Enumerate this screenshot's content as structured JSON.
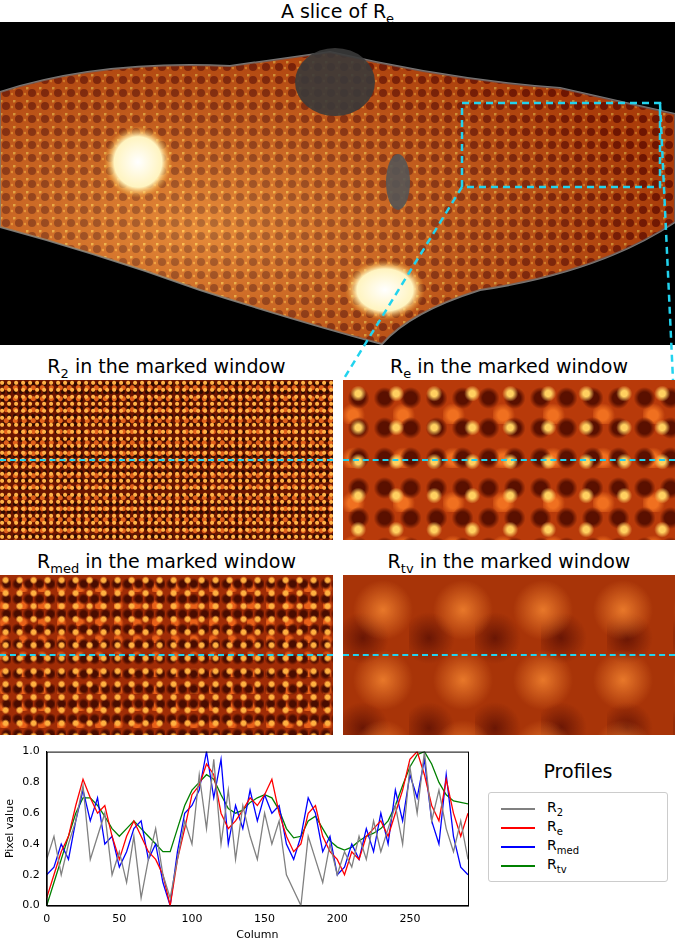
{
  "figure": {
    "title": "A slice of Re",
    "windows": [
      "R2 in the marked window",
      "Re in the marked window",
      "Rmed in the marked window",
      "Rtv in the marked window"
    ]
  },
  "chart_data": {
    "type": "line",
    "x_label": "Column",
    "y_label": "Pixel value",
    "legend": "right",
    "legend_title": "Profiles",
    "grid": false,
    "xlim": [
      0,
      290
    ],
    "xticks": [
      0,
      50,
      100,
      150,
      200,
      250
    ],
    "ylim": [
      0,
      1
    ],
    "yticks": [
      {
        "value": 0,
        "label": "0.0"
      },
      {
        "value": 0.2,
        "label": "0.2"
      },
      {
        "value": 0.4,
        "label": "0.4"
      },
      {
        "value": 0.6,
        "label": "0.6"
      },
      {
        "value": 0.8,
        "label": "0.8"
      },
      {
        "value": 1,
        "label": "1.0"
      }
    ],
    "x": [
      0,
      5,
      10,
      15,
      20,
      25,
      30,
      35,
      40,
      45,
      50,
      55,
      60,
      65,
      70,
      75,
      80,
      85,
      90,
      95,
      100,
      105,
      110,
      115,
      120,
      125,
      130,
      135,
      140,
      145,
      150,
      155,
      160,
      165,
      170,
      175,
      180,
      185,
      190,
      195,
      200,
      205,
      210,
      215,
      220,
      225,
      230,
      235,
      240,
      245,
      250,
      255,
      260,
      265,
      270,
      275,
      280,
      285,
      290
    ],
    "series": [
      {
        "name": "R2",
        "color": "#808080",
        "values": [
          0.3,
          0.45,
          0.2,
          0.4,
          0.55,
          0.78,
          0.3,
          0.45,
          0.6,
          0.2,
          0.35,
          0.15,
          0.45,
          0.05,
          0.3,
          0.5,
          0.2,
          0.05,
          0.3,
          0.55,
          0.4,
          0.85,
          0.5,
          0.95,
          0.4,
          0.75,
          0.3,
          0.65,
          0.45,
          0.3,
          0.6,
          0.4,
          0.55,
          0.2,
          0.1,
          0.0,
          0.45,
          0.3,
          0.15,
          0.4,
          0.2,
          0.35,
          0.25,
          0.45,
          0.3,
          0.55,
          0.35,
          0.5,
          0.65,
          0.4,
          0.9,
          0.6,
          1.0,
          0.55,
          0.75,
          0.5,
          0.35,
          0.55,
          0.3
        ]
      },
      {
        "name": "Re",
        "color": "#ff0000",
        "values": [
          0.05,
          0.2,
          0.35,
          0.45,
          0.65,
          0.82,
          0.7,
          0.6,
          0.65,
          0.45,
          0.3,
          0.45,
          0.55,
          0.45,
          0.35,
          0.3,
          0.2,
          0.0,
          0.3,
          0.5,
          0.72,
          0.78,
          0.92,
          0.85,
          0.6,
          0.5,
          0.55,
          0.62,
          0.7,
          0.65,
          0.72,
          0.82,
          0.6,
          0.45,
          0.35,
          0.4,
          0.6,
          0.65,
          0.45,
          0.35,
          0.3,
          0.2,
          0.35,
          0.3,
          0.45,
          0.5,
          0.55,
          0.45,
          0.6,
          0.75,
          0.95,
          1.0,
          0.85,
          0.65,
          0.55,
          0.82,
          0.6,
          0.45,
          0.6
        ]
      },
      {
        "name": "Rmed",
        "color": "#0000ff",
        "values": [
          0.2,
          0.25,
          0.4,
          0.3,
          0.55,
          0.75,
          0.55,
          0.7,
          0.4,
          0.45,
          0.25,
          0.35,
          0.5,
          0.55,
          0.3,
          0.4,
          0.15,
          0.0,
          0.35,
          0.6,
          0.65,
          0.75,
          1.0,
          0.7,
          0.95,
          0.4,
          0.65,
          0.5,
          0.75,
          0.55,
          0.72,
          0.6,
          0.65,
          0.4,
          0.3,
          0.45,
          0.7,
          0.6,
          0.35,
          0.45,
          0.2,
          0.25,
          0.4,
          0.3,
          0.5,
          0.35,
          0.6,
          0.4,
          0.75,
          0.55,
          0.85,
          0.7,
          0.95,
          0.55,
          0.4,
          0.85,
          0.45,
          0.25,
          0.2
        ]
      },
      {
        "name": "Rtv",
        "color": "#008000",
        "values": [
          0.0,
          0.15,
          0.3,
          0.45,
          0.6,
          0.7,
          0.7,
          0.65,
          0.58,
          0.5,
          0.45,
          0.5,
          0.55,
          0.5,
          0.45,
          0.4,
          0.35,
          0.35,
          0.5,
          0.65,
          0.75,
          0.8,
          0.85,
          0.82,
          0.72,
          0.63,
          0.6,
          0.62,
          0.67,
          0.7,
          0.72,
          0.7,
          0.62,
          0.5,
          0.44,
          0.45,
          0.55,
          0.58,
          0.5,
          0.42,
          0.38,
          0.36,
          0.38,
          0.42,
          0.45,
          0.47,
          0.5,
          0.55,
          0.65,
          0.78,
          0.9,
          0.98,
          1.0,
          0.92,
          0.8,
          0.72,
          0.68,
          0.67,
          0.66
        ]
      }
    ]
  }
}
